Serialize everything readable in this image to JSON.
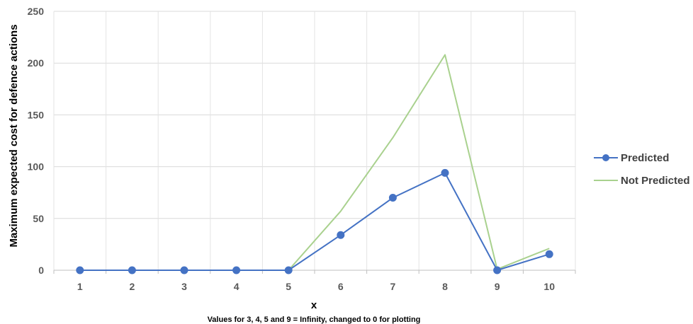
{
  "chart_data": {
    "type": "line",
    "title": "",
    "xlabel": "x",
    "ylabel": "Maximum expected cost for defence actions",
    "note": "Values for 3, 4, 5 and 9 = Infinity, changed to 0 for plotting",
    "x": [
      1,
      2,
      3,
      4,
      5,
      6,
      7,
      8,
      9,
      10
    ],
    "categories": [
      "1",
      "2",
      "3",
      "4",
      "5",
      "6",
      "7",
      "8",
      "9",
      "10"
    ],
    "ylim": [
      0,
      250
    ],
    "yticks": [
      0,
      50,
      100,
      150,
      200,
      250
    ],
    "ytick_labels": [
      "0",
      "50",
      "100",
      "150",
      "200",
      "250"
    ],
    "grid": true,
    "legend_position": "right",
    "series": [
      {
        "name": "Predicted",
        "color": "#4472C4",
        "marker": "circle",
        "values": [
          0,
          0,
          0,
          0,
          0,
          34,
          70,
          94,
          0,
          15.5
        ]
      },
      {
        "name": "Not Predicted",
        "color": "#A9D18E",
        "marker": "none",
        "values": [
          0,
          0,
          0,
          0,
          0,
          57,
          128,
          208,
          1,
          21
        ]
      }
    ]
  }
}
